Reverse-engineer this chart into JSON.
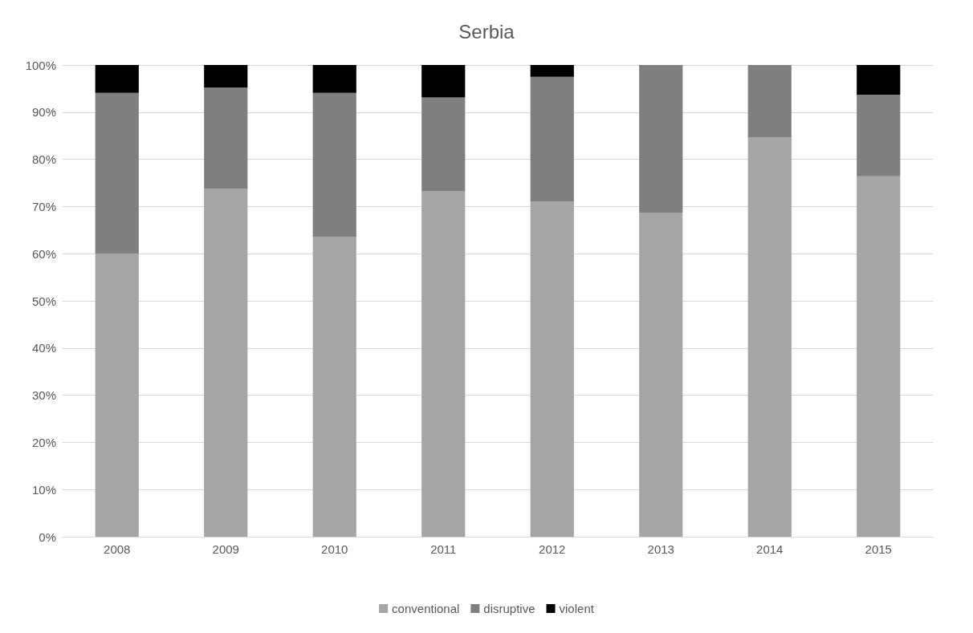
{
  "chart_data": {
    "type": "bar",
    "title": "Serbia",
    "stacked": true,
    "categories": [
      "2008",
      "2009",
      "2010",
      "2011",
      "2012",
      "2013",
      "2014",
      "2015"
    ],
    "series": [
      {
        "name": "conventional",
        "color": "#a5a5a5",
        "values": [
          60,
          73.8,
          63.5,
          73.2,
          71,
          68.7,
          84.6,
          76.4
        ]
      },
      {
        "name": "disruptive",
        "color": "#7f7f7f",
        "values": [
          34.1,
          21.4,
          30.6,
          19.9,
          26.5,
          31.3,
          15.4,
          17.3
        ]
      },
      {
        "name": "violent",
        "color": "#000000",
        "values": [
          5.9,
          4.8,
          5.9,
          6.9,
          2.5,
          0,
          0,
          6.3
        ]
      }
    ],
    "ylim": [
      0,
      100
    ],
    "yticks": [
      {
        "value": 0,
        "label": "0%"
      },
      {
        "value": 10,
        "label": "10%"
      },
      {
        "value": 20,
        "label": "20%"
      },
      {
        "value": 30,
        "label": "30%"
      },
      {
        "value": 40,
        "label": "40%"
      },
      {
        "value": 50,
        "label": "50%"
      },
      {
        "value": 60,
        "label": "60%"
      },
      {
        "value": 70,
        "label": "70%"
      },
      {
        "value": 80,
        "label": "80%"
      },
      {
        "value": 90,
        "label": "90%"
      },
      {
        "value": 100,
        "label": "100%"
      }
    ],
    "grid": "y",
    "legend": "bottom"
  }
}
